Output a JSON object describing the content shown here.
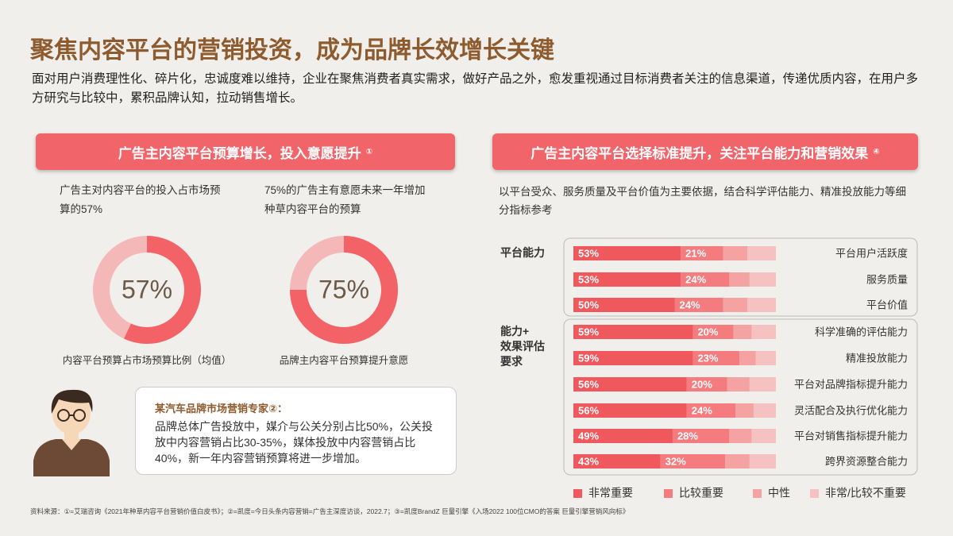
{
  "header": {
    "title": "聚焦内容平台的营销投资，成为品牌长效增长关键",
    "subtitle": "面对用户消费理性化、碎片化，忠诚度难以维持，企业在聚焦消费者真实需求，做好产品之外，愈发重视通过目标消费者关注的信息渠道，传递优质内容，在用户多方研究与比较中，累积品牌认知，拉动销售增长。"
  },
  "left_panel": {
    "heading": "广告主内容平台预算增长，投入意愿提升",
    "heading_note": "①"
  },
  "right_panel": {
    "heading": "广告主内容平台选择标准提升，关注平台能力和营销效果",
    "heading_note": "④",
    "description": "以平台受众、服务质量及平台价值为主要依据，结合科学评估能力、精准投放能力等细分指标参考"
  },
  "expert": {
    "name": "某汽车品牌市场营销专家②：",
    "quote": "品牌总体广告投放中，媒介与公关分别占比50%，公关投放中内容营销占比30-35%，媒体投放中内容营销占比40%，新一年内容营销预算将进一步增加。"
  },
  "footer": {
    "source": "资料来源：①=艾瑞咨询《2021年种草内容平台营销价值白皮书》；②=凯度=今日头条内容营销=广告主深度访谈，2022.7；③=凯度BrandZ 巨量引擎《入场2022 100位CMO的答案 巨量引擎营销风向标》"
  },
  "chart_data": [
    {
      "type": "donut",
      "note": "广告主对内容平台的投入占市场预算的57%",
      "values": [
        57
      ],
      "value_labels": [
        "57%"
      ],
      "caption": "内容平台预算占市场预算比例（均值）",
      "color": "#f26266",
      "track_color": "#f5b8b8"
    },
    {
      "type": "donut",
      "note": "75%的广告主有意愿未来一年增加种草内容平台的预算",
      "values": [
        75
      ],
      "value_labels": [
        "75%"
      ],
      "caption": "品牌主内容平台预算提升意愿",
      "color": "#f26266",
      "track_color": "#f5b8b8"
    },
    {
      "type": "stacked-bar",
      "groups": [
        "平台能力",
        "能力+\n效果评估\n要求"
      ],
      "categories": [
        "平台用户活跃度",
        "服务质量",
        "平台价值",
        "科学准确的评估能力",
        "精准投放能力",
        "平台对品牌指标提升能力",
        "灵活配合及执行优化能力",
        "平台对销售指标提升能力",
        "跨界资源整合能力"
      ],
      "xlim": [
        0,
        100
      ],
      "series": [
        {
          "name": "非常重要",
          "color": "#ef585d",
          "values": [
            53,
            53,
            50,
            59,
            59,
            56,
            56,
            49,
            43
          ],
          "value_labels": [
            "53%",
            "53%",
            "50%",
            "59%",
            "59%",
            "56%",
            "56%",
            "49%",
            "43%"
          ]
        },
        {
          "name": "比较重要",
          "color": "#f47c7f",
          "values": [
            21,
            24,
            24,
            20,
            23,
            20,
            24,
            28,
            32
          ],
          "value_labels": [
            "21%",
            "24%",
            "24%",
            "20%",
            "23%",
            "20%",
            "24%",
            "28%",
            "32%"
          ]
        },
        {
          "name": "中性",
          "color": "#f4a2a2",
          "values": [
            12,
            10,
            12,
            9,
            8,
            11,
            9,
            11,
            12
          ]
        },
        {
          "name": "非常/比较不重要",
          "color": "#f5c1c1",
          "values": [
            14,
            13,
            14,
            12,
            10,
            13,
            11,
            12,
            13
          ]
        }
      ]
    }
  ]
}
